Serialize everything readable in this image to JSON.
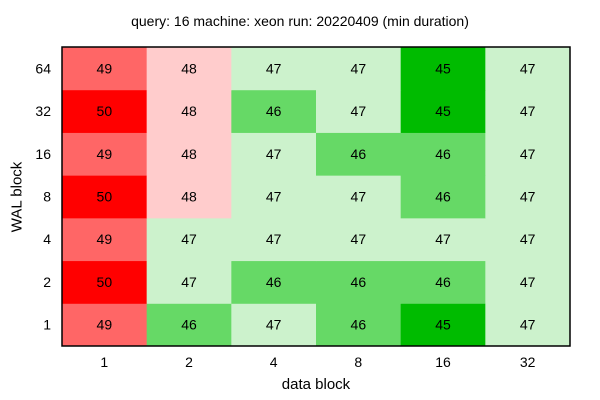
{
  "chart_data": {
    "type": "heatmap",
    "title": "query: 16  machine: xeon  run: 20220409  (min duration)",
    "xlabel": "data block",
    "ylabel": "WAL block",
    "x_categories": [
      "1",
      "2",
      "4",
      "8",
      "16",
      "32"
    ],
    "y_categories": [
      "1",
      "2",
      "4",
      "8",
      "16",
      "32",
      "64"
    ],
    "values": [
      [
        49,
        46,
        47,
        46,
        45,
        47
      ],
      [
        50,
        47,
        46,
        46,
        46,
        47
      ],
      [
        49,
        47,
        47,
        47,
        47,
        47
      ],
      [
        50,
        48,
        47,
        47,
        46,
        47
      ],
      [
        49,
        48,
        47,
        46,
        46,
        47
      ],
      [
        50,
        48,
        46,
        47,
        45,
        47
      ],
      [
        49,
        48,
        47,
        47,
        45,
        47
      ]
    ],
    "colors": {
      "45": "#00bb00",
      "46": "#66d966",
      "47": "#ccf2cc",
      "48": "#ffcccc",
      "49": "#ff6666",
      "50": "#ff0000"
    },
    "grid": false,
    "legend": "none"
  }
}
